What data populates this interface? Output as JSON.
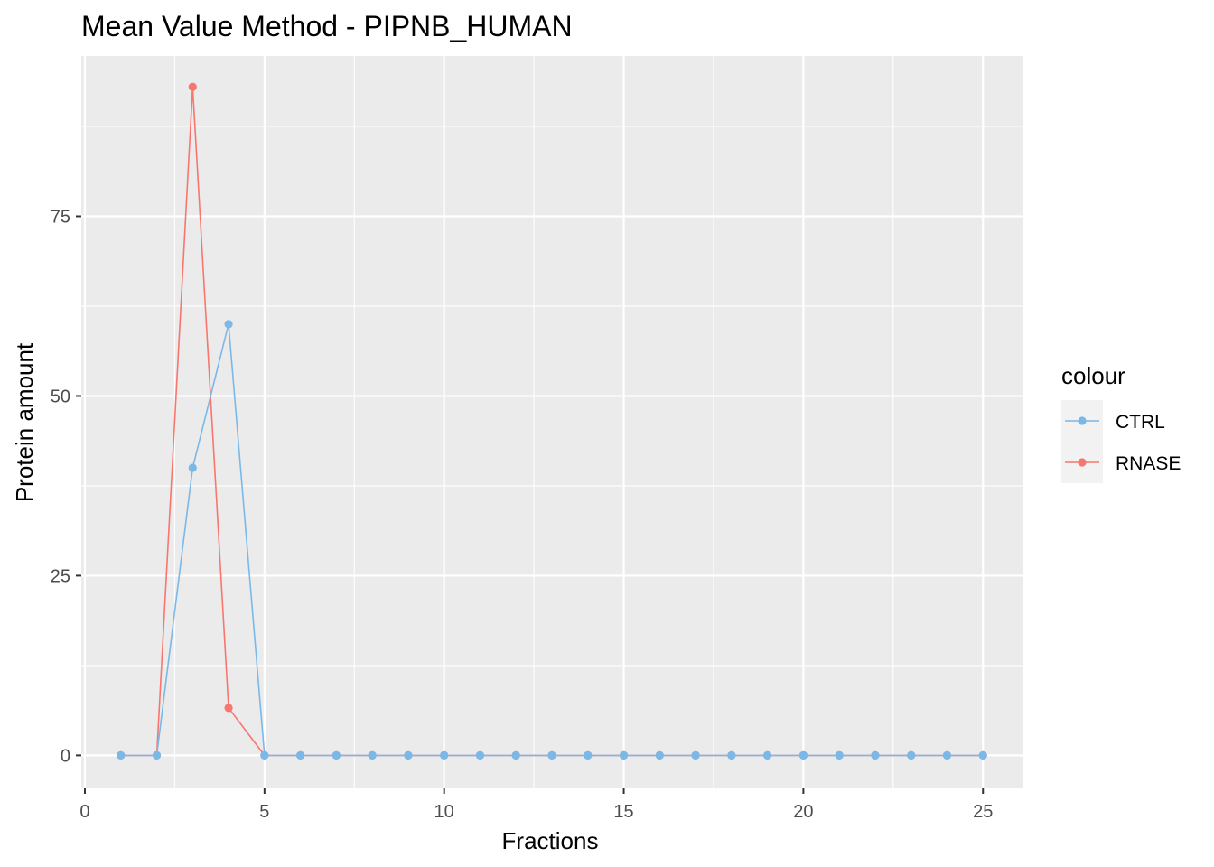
{
  "chart_data": {
    "type": "line",
    "title": "Mean Value Method - PIPNB_HUMAN",
    "xlabel": "Fractions",
    "ylabel": "Protein amount",
    "xlim": [
      -0.1,
      26.1
    ],
    "ylim": [
      -4.6,
      97.3
    ],
    "x_ticks": [
      0,
      5,
      10,
      15,
      20,
      25
    ],
    "y_ticks": [
      0,
      25,
      50,
      75
    ],
    "grid": true,
    "legend": {
      "title": "colour",
      "position": "right"
    },
    "x": [
      1,
      2,
      3,
      4,
      5,
      6,
      7,
      8,
      9,
      10,
      11,
      12,
      13,
      14,
      15,
      16,
      17,
      18,
      19,
      20,
      21,
      22,
      23,
      24,
      25
    ],
    "series": [
      {
        "name": "RNASE",
        "color": "#f8766d",
        "values": [
          0,
          0,
          93,
          6.6,
          0,
          0,
          0,
          0,
          0,
          0,
          0,
          0,
          0,
          0,
          0,
          0,
          0,
          0,
          0,
          0,
          0,
          0,
          0,
          0,
          0
        ]
      },
      {
        "name": "CTRL",
        "color": "#7ab8e8",
        "values": [
          0,
          0,
          40,
          60,
          0,
          0,
          0,
          0,
          0,
          0,
          0,
          0,
          0,
          0,
          0,
          0,
          0,
          0,
          0,
          0,
          0,
          0,
          0,
          0,
          0
        ]
      }
    ],
    "legend_order": [
      "CTRL",
      "RNASE"
    ]
  }
}
